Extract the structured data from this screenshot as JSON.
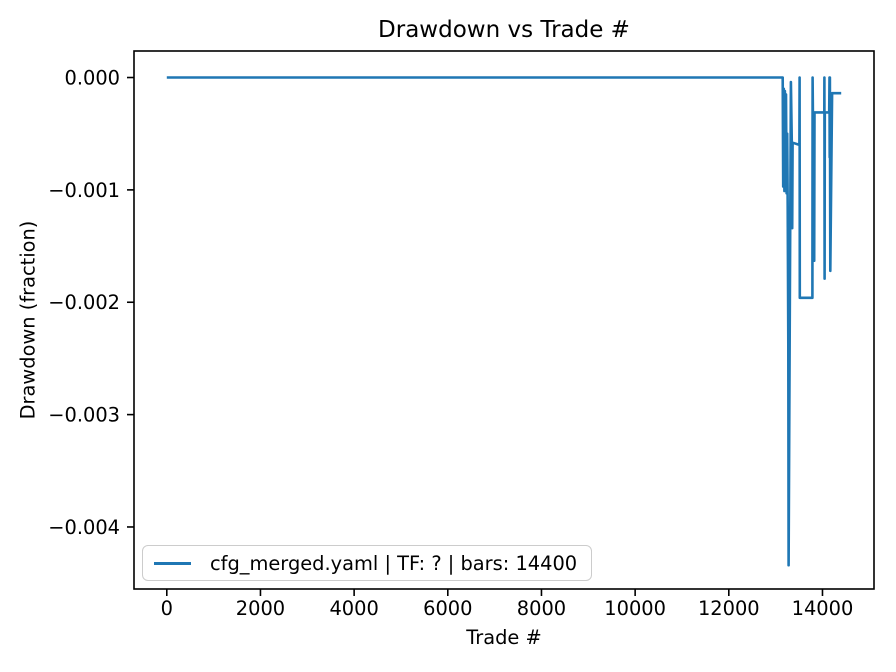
{
  "figure": {
    "background": "#ffffff"
  },
  "chart_data": {
    "type": "line",
    "title": "Drawdown vs Trade #",
    "xlabel": "Trade #",
    "ylabel": "Drawdown (fraction)",
    "grid": false,
    "legend_position": "lower-left",
    "xlim": [
      -700,
      15100
    ],
    "ylim": [
      -0.004552,
      0.000236
    ],
    "x_ticks": [
      0,
      2000,
      4000,
      6000,
      8000,
      10000,
      12000,
      14000
    ],
    "x_tick_labels": [
      "0",
      "2000",
      "4000",
      "6000",
      "8000",
      "10000",
      "12000",
      "14000"
    ],
    "y_ticks": [
      0.0,
      -0.001,
      -0.002,
      -0.003,
      -0.004
    ],
    "y_tick_labels": [
      "0.000",
      "−0.001",
      "−0.002",
      "−0.003",
      "−0.004"
    ],
    "axis_color": "#000000",
    "series": [
      {
        "name": "cfg_merged.yaml | TF: ? | bars: 14400",
        "color": "#1f77b4",
        "points": [
          [
            0,
            0.0
          ],
          [
            13150,
            0.0
          ],
          [
            13162,
            -0.00097
          ],
          [
            13174,
            -0.0001
          ],
          [
            13186,
            -0.00101
          ],
          [
            13198,
            -0.00012
          ],
          [
            13210,
            -0.00099
          ],
          [
            13222,
            -0.00015
          ],
          [
            13234,
            -0.00103
          ],
          [
            13246,
            -0.0005
          ],
          [
            13258,
            -0.00116
          ],
          [
            13270,
            -0.00238
          ],
          [
            13276,
            -0.00434
          ],
          [
            13325,
            -4e-05
          ],
          [
            13345,
            -0.00058
          ],
          [
            13353,
            -0.00134
          ],
          [
            13362,
            -0.00058
          ],
          [
            13508,
            -0.0006
          ],
          [
            13512,
            0.0
          ],
          [
            13516,
            -0.00196
          ],
          [
            13785,
            -0.00196
          ],
          [
            13789,
            0.0
          ],
          [
            13824,
            -0.00163
          ],
          [
            13830,
            -0.00031
          ],
          [
            14038,
            -0.00031
          ],
          [
            14042,
            0.0
          ],
          [
            14046,
            -0.00179
          ],
          [
            14050,
            -0.00031
          ],
          [
            14144,
            -0.00031
          ],
          [
            14149,
            0.0
          ],
          [
            14154,
            -0.00071
          ],
          [
            14159,
            0.0
          ],
          [
            14167,
            -0.00172
          ],
          [
            14205,
            -0.00014
          ],
          [
            14400,
            -0.00014
          ]
        ]
      }
    ]
  }
}
